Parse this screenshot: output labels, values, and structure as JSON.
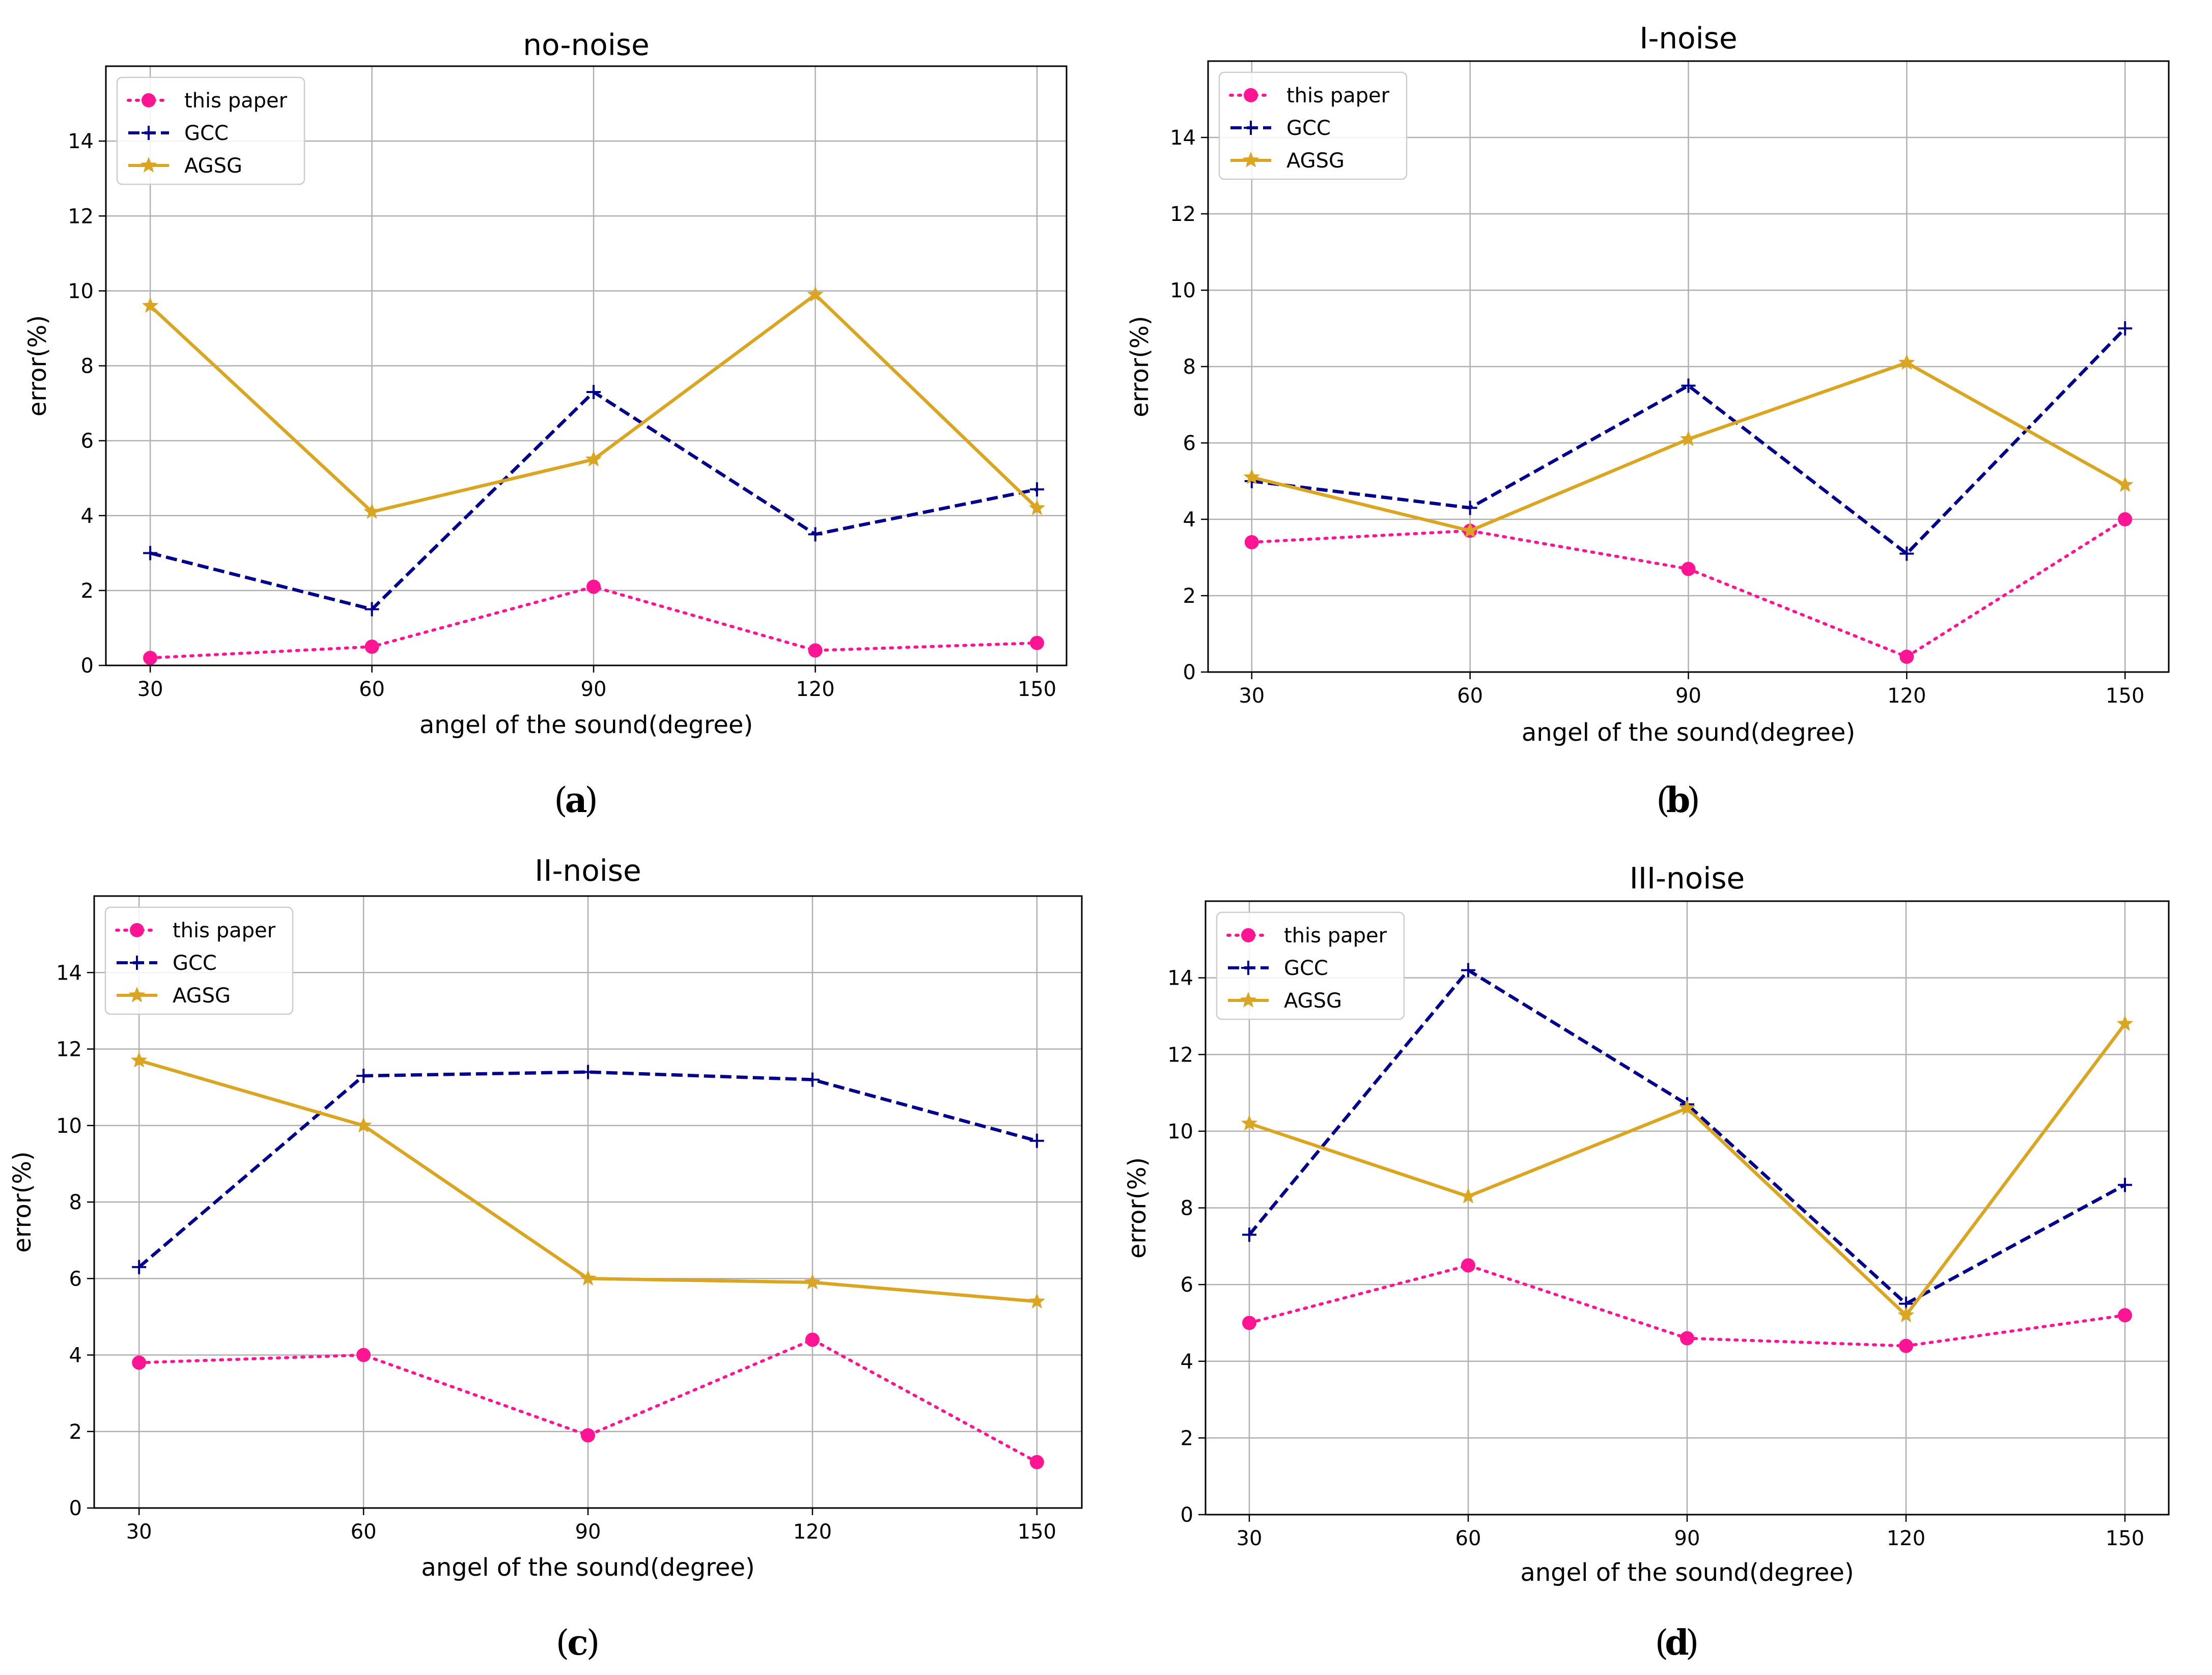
{
  "colors": {
    "this_paper": "#ff1493",
    "gcc": "#00008b",
    "agsg": "#daa520",
    "grid": "#b0b0b0",
    "axis": "#000000"
  },
  "chart_data": [
    {
      "type": "line",
      "panel": "a",
      "caption_letter": "a",
      "title": "no-noise",
      "xlabel": "angel of the sound(degree)",
      "ylabel": "error(%)",
      "x": [
        30,
        60,
        90,
        120,
        150
      ],
      "x_tick_labels": [
        "30",
        "60",
        "90",
        "120",
        "150"
      ],
      "xlim": [
        24,
        154
      ],
      "ylim": [
        0,
        16
      ],
      "y_ticks": [
        0,
        2,
        4,
        6,
        8,
        10,
        12,
        14
      ],
      "y_tick_labels": [
        "0",
        "2",
        "4",
        "6",
        "8",
        "10",
        "12",
        "14"
      ],
      "grid": true,
      "legend_position": "top-left",
      "series": [
        {
          "name": "this paper",
          "key": "this_paper",
          "values": [
            0.2,
            0.5,
            2.1,
            0.4,
            0.6
          ]
        },
        {
          "name": "GCC",
          "key": "gcc",
          "values": [
            3.0,
            1.5,
            7.3,
            3.5,
            4.7
          ]
        },
        {
          "name": "AGSG",
          "key": "agsg",
          "values": [
            9.6,
            4.1,
            5.5,
            9.9,
            4.2
          ]
        }
      ]
    },
    {
      "type": "line",
      "panel": "b",
      "caption_letter": "b",
      "title": "I-noise",
      "xlabel": "angel of the sound(degree)",
      "ylabel": "error(%)",
      "x": [
        30,
        60,
        90,
        120,
        150
      ],
      "x_tick_labels": [
        "30",
        "60",
        "90",
        "120",
        "150"
      ],
      "xlim": [
        24,
        156
      ],
      "ylim": [
        0,
        16
      ],
      "y_ticks": [
        0,
        2,
        4,
        6,
        8,
        10,
        12,
        14
      ],
      "y_tick_labels": [
        "0",
        "2",
        "4",
        "6",
        "8",
        "10",
        "12",
        "14"
      ],
      "grid": true,
      "legend_position": "top-left",
      "series": [
        {
          "name": "this paper",
          "key": "this_paper",
          "values": [
            3.4,
            3.7,
            2.7,
            0.4,
            4.0
          ]
        },
        {
          "name": "GCC",
          "key": "gcc",
          "values": [
            5.0,
            4.3,
            7.5,
            3.1,
            9.0
          ]
        },
        {
          "name": "AGSG",
          "key": "agsg",
          "values": [
            5.1,
            3.7,
            6.1,
            8.1,
            4.9
          ]
        }
      ]
    },
    {
      "type": "line",
      "panel": "c",
      "caption_letter": "c",
      "title": "II-noise",
      "xlabel": "angel of the sound(degree)",
      "ylabel": "error(%)",
      "x": [
        30,
        60,
        90,
        120,
        150
      ],
      "x_tick_labels": [
        "30",
        "60",
        "90",
        "120",
        "150"
      ],
      "xlim": [
        24,
        156
      ],
      "ylim": [
        0,
        16
      ],
      "y_ticks": [
        0,
        2,
        4,
        6,
        8,
        10,
        12,
        14
      ],
      "y_tick_labels": [
        "0",
        "2",
        "4",
        "6",
        "8",
        "10",
        "12",
        "14"
      ],
      "grid": true,
      "legend_position": "top-left",
      "series": [
        {
          "name": "this paper",
          "key": "this_paper",
          "values": [
            3.8,
            4.0,
            1.9,
            4.4,
            1.2
          ]
        },
        {
          "name": "GCC",
          "key": "gcc",
          "values": [
            6.3,
            11.3,
            11.4,
            11.2,
            9.6
          ]
        },
        {
          "name": "AGSG",
          "key": "agsg",
          "values": [
            11.7,
            10.0,
            6.0,
            5.9,
            5.4
          ]
        }
      ]
    },
    {
      "type": "line",
      "panel": "d",
      "caption_letter": "d",
      "title": "III-noise",
      "xlabel": "angel of the sound(degree)",
      "ylabel": "error(%)",
      "x": [
        30,
        60,
        90,
        120,
        150
      ],
      "x_tick_labels": [
        "30",
        "60",
        "90",
        "120",
        "150"
      ],
      "xlim": [
        24,
        156
      ],
      "ylim": [
        0,
        16
      ],
      "y_ticks": [
        0,
        2,
        4,
        6,
        8,
        10,
        12,
        14
      ],
      "y_tick_labels": [
        "0",
        "2",
        "4",
        "6",
        "8",
        "10",
        "12",
        "14"
      ],
      "grid": true,
      "legend_position": "top-left",
      "series": [
        {
          "name": "this paper",
          "key": "this_paper",
          "values": [
            5.0,
            6.5,
            4.6,
            4.4,
            5.2
          ]
        },
        {
          "name": "GCC",
          "key": "gcc",
          "values": [
            7.3,
            14.2,
            10.7,
            5.5,
            8.6
          ]
        },
        {
          "name": "AGSG",
          "key": "agsg",
          "values": [
            10.2,
            8.3,
            10.6,
            5.2,
            12.8
          ]
        }
      ]
    }
  ]
}
